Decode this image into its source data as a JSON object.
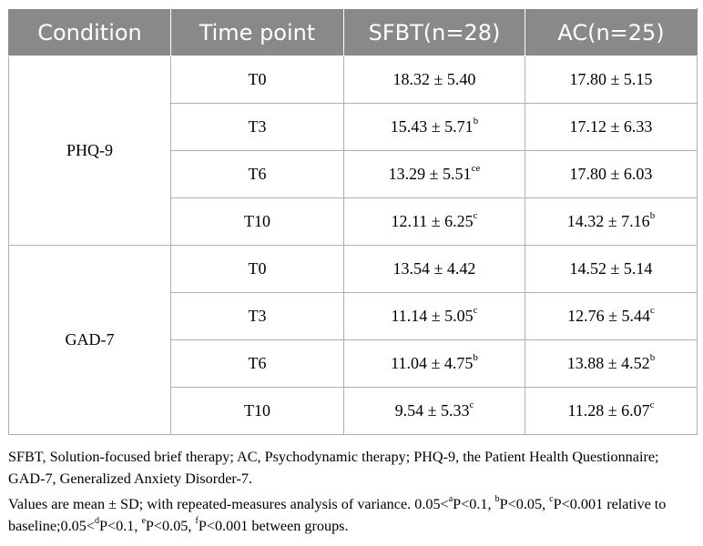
{
  "table": {
    "headers": [
      "Condition",
      "Time point",
      "SFBT(n=28)",
      "AC(n=25)"
    ],
    "groups": [
      {
        "condition": "PHQ-9",
        "rows": [
          {
            "time": "T0",
            "sfbt": "18.32 ± 5.40",
            "sfbt_sup": "",
            "ac": "17.80 ± 5.15",
            "ac_sup": ""
          },
          {
            "time": "T3",
            "sfbt": "15.43 ± 5.71",
            "sfbt_sup": "b",
            "ac": "17.12 ± 6.33",
            "ac_sup": ""
          },
          {
            "time": "T6",
            "sfbt": "13.29 ± 5.51",
            "sfbt_sup": "ce",
            "ac": "17.80 ± 6.03",
            "ac_sup": ""
          },
          {
            "time": "T10",
            "sfbt": "12.11 ± 6.25",
            "sfbt_sup": "c",
            "ac": "14.32 ± 7.16",
            "ac_sup": "b"
          }
        ]
      },
      {
        "condition": "GAD-7",
        "rows": [
          {
            "time": "T0",
            "sfbt": "13.54 ± 4.42",
            "sfbt_sup": "",
            "ac": "14.52 ± 5.14",
            "ac_sup": ""
          },
          {
            "time": "T3",
            "sfbt": "11.14 ± 5.05",
            "sfbt_sup": "c",
            "ac": "12.76 ± 5.44",
            "ac_sup": "c"
          },
          {
            "time": "T6",
            "sfbt": "11.04 ± 4.75",
            "sfbt_sup": "b",
            "ac": "13.88 ± 4.52",
            "ac_sup": "b"
          },
          {
            "time": "T10",
            "sfbt": "9.54 ± 5.33",
            "sfbt_sup": "c",
            "ac": "11.28 ± 6.07",
            "ac_sup": "c"
          }
        ]
      }
    ]
  },
  "footnote": {
    "abbreviations": "SFBT, Solution-focused brief therapy; AC, Psychodynamic therapy; PHQ-9, the Patient Health Questionnaire; GAD-7, Generalized Anxiety Disorder-7.",
    "stats": [
      {
        "text": "Values are mean ± SD; with repeated-measures analysis of variance. 0.05<",
        "sup": false
      },
      {
        "text": "a",
        "sup": true
      },
      {
        "text": "P<0.1, ",
        "sup": false
      },
      {
        "text": "b",
        "sup": true
      },
      {
        "text": "P<0.05, ",
        "sup": false
      },
      {
        "text": "c",
        "sup": true
      },
      {
        "text": "P<0.001 relative to baseline;0.05<",
        "sup": false
      },
      {
        "text": "d",
        "sup": true
      },
      {
        "text": "P<0.1, ",
        "sup": false
      },
      {
        "text": "e",
        "sup": true
      },
      {
        "text": "P<0.05, ",
        "sup": false
      },
      {
        "text": "f",
        "sup": true
      },
      {
        "text": "P<0.001 between groups.",
        "sup": false
      }
    ]
  }
}
